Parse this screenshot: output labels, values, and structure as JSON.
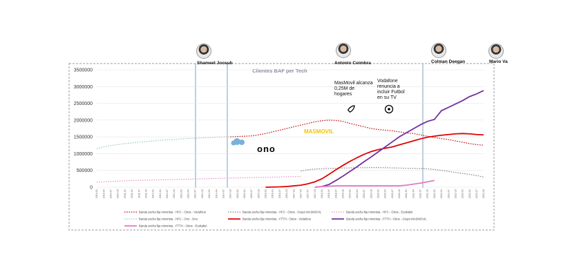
{
  "chart_data": {
    "type": "line",
    "title": "Clientes BAF per Tech",
    "categories": [
      "2010-01",
      "2010-04",
      "2010-07",
      "2010-10",
      "2011-01",
      "2011-04",
      "2011-07",
      "2011-10",
      "2012-01",
      "2012-04",
      "2012-07",
      "2012-10",
      "2013-01",
      "2013-04",
      "2013-07",
      "2013-10",
      "2014-01",
      "2014-04",
      "2014-07",
      "2014-10",
      "2015-01",
      "2015-04",
      "2015-07",
      "2015-10",
      "2016-01",
      "2016-04",
      "2016-07",
      "2016-10",
      "2017-01",
      "2017-04",
      "2017-07",
      "2017-10",
      "2018-01",
      "2018-04",
      "2018-07",
      "2018-10",
      "2019-01",
      "2019-04",
      "2019-07",
      "2019-10",
      "2020-01",
      "2020-04",
      "2020-07",
      "2020-10",
      "2021-01",
      "2021-04",
      "2021-07",
      "2021-10",
      "2022-01",
      "2022-04",
      "2022-07",
      "2022-10",
      "2023-01",
      "2023-04",
      "2023-07",
      "2023-10"
    ],
    "series": [
      {
        "name": "Banda ancha fija minorista - HFC - Otros - Vodafone",
        "color": "#c00000",
        "dashed": true,
        "values": [
          null,
          null,
          null,
          null,
          null,
          null,
          null,
          null,
          null,
          null,
          null,
          null,
          null,
          null,
          null,
          null,
          null,
          null,
          null,
          1500000,
          1510000,
          1520000,
          1530000,
          1560000,
          1600000,
          1650000,
          1700000,
          1750000,
          1800000,
          1850000,
          1900000,
          1950000,
          1980000,
          2000000,
          1990000,
          1960000,
          1900000,
          1850000,
          1800000,
          1750000,
          1720000,
          1700000,
          1680000,
          1650000,
          1620000,
          1600000,
          1560000,
          1520000,
          1480000,
          1450000,
          1420000,
          1380000,
          1340000,
          1300000,
          1270000,
          1250000
        ]
      },
      {
        "name": "Banda ancha fija minorista - HFC - Otros - Grupo MASMOVIL",
        "color": "#7f7f7f",
        "dashed": true,
        "values": [
          null,
          null,
          null,
          null,
          null,
          null,
          null,
          null,
          null,
          null,
          null,
          null,
          null,
          null,
          null,
          null,
          null,
          null,
          null,
          null,
          null,
          null,
          null,
          null,
          null,
          null,
          null,
          null,
          null,
          480000,
          520000,
          540000,
          550000,
          560000,
          565000,
          570000,
          575000,
          580000,
          580000,
          585000,
          585000,
          580000,
          575000,
          570000,
          565000,
          560000,
          555000,
          550000,
          530000,
          500000,
          470000,
          440000,
          410000,
          380000,
          350000,
          300000
        ]
      },
      {
        "name": "Banda ancha fija minorista - HFC - Otros - Euskaltel",
        "color": "#e68fc2",
        "dashed": true,
        "values": [
          150000,
          160000,
          170000,
          180000,
          190000,
          200000,
          205000,
          210000,
          215000,
          220000,
          225000,
          230000,
          235000,
          240000,
          245000,
          250000,
          255000,
          260000,
          265000,
          270000,
          275000,
          280000,
          285000,
          290000,
          295000,
          300000,
          305000,
          310000,
          315000,
          320000,
          null,
          null,
          null,
          null,
          null,
          null,
          null,
          null,
          null,
          null,
          null,
          null,
          null,
          null,
          null,
          null,
          null,
          null,
          null,
          null,
          null,
          null,
          null,
          null,
          null,
          null
        ]
      },
      {
        "name": "Banda ancha fija minorista - HFC - Ono - Ono",
        "color": "#9dc7c4",
        "dashed": true,
        "values": [
          1150000,
          1200000,
          1240000,
          1270000,
          1300000,
          1320000,
          1340000,
          1360000,
          1380000,
          1400000,
          1410000,
          1420000,
          1440000,
          1450000,
          1460000,
          1470000,
          1480000,
          1490000,
          1500000,
          1500000,
          null,
          null,
          null,
          null,
          null,
          null,
          null,
          null,
          null,
          null,
          null,
          null,
          null,
          null,
          null,
          null,
          null,
          null,
          null,
          null,
          null,
          null,
          null,
          null,
          null,
          null,
          null,
          null,
          null,
          null,
          null,
          null,
          null,
          null,
          null,
          null
        ]
      },
      {
        "name": "Banda ancha fija minorista - FTTH - Otros - Vodafone",
        "color": "#e00000",
        "dashed": false,
        "values": [
          null,
          null,
          null,
          null,
          null,
          null,
          null,
          null,
          null,
          null,
          null,
          null,
          null,
          null,
          null,
          null,
          null,
          null,
          null,
          null,
          null,
          null,
          null,
          null,
          0,
          5000,
          10000,
          20000,
          40000,
          60000,
          100000,
          160000,
          250000,
          380000,
          520000,
          650000,
          770000,
          880000,
          980000,
          1060000,
          1120000,
          1160000,
          1200000,
          1260000,
          1320000,
          1380000,
          1440000,
          1490000,
          1520000,
          1550000,
          1570000,
          1590000,
          1600000,
          1590000,
          1570000,
          1560000
        ]
      },
      {
        "name": "Banda ancha fija minorista - FTTH - Otros - Grupo MASMOVIL",
        "color": "#7030a0",
        "dashed": false,
        "values": [
          null,
          null,
          null,
          null,
          null,
          null,
          null,
          null,
          null,
          null,
          null,
          null,
          null,
          null,
          null,
          null,
          null,
          null,
          null,
          null,
          null,
          null,
          null,
          null,
          null,
          null,
          null,
          null,
          null,
          null,
          null,
          0,
          20000,
          80000,
          200000,
          330000,
          470000,
          610000,
          760000,
          900000,
          1050000,
          1200000,
          1350000,
          1500000,
          1620000,
          1740000,
          1860000,
          1960000,
          2020000,
          2280000,
          2380000,
          2480000,
          2580000,
          2700000,
          2780000,
          2880000
        ]
      },
      {
        "name": "Banda ancha fija minorista - FTTH - Otros - Euskaltel",
        "color": "#e377c2",
        "dashed": false,
        "values": [
          null,
          null,
          null,
          null,
          null,
          null,
          null,
          null,
          null,
          null,
          null,
          null,
          null,
          null,
          null,
          null,
          null,
          null,
          null,
          null,
          null,
          null,
          null,
          null,
          null,
          null,
          null,
          null,
          null,
          null,
          null,
          0,
          20000,
          30000,
          40000,
          40000,
          40000,
          40000,
          40000,
          40000,
          40000,
          40000,
          40000,
          40000,
          60000,
          90000,
          120000,
          160000,
          200000,
          null,
          null,
          null,
          null,
          null,
          null,
          null
        ]
      }
    ],
    "ylim": [
      0,
      3500000
    ],
    "yticks": [
      0,
      500000,
      1000000,
      1500000,
      2000000,
      2500000,
      3000000,
      3500000
    ],
    "grid": true,
    "people": [
      "Shameel Joosub",
      "Antonio Coimbra",
      "Colman Deegan",
      "Mario Va"
    ],
    "annotations": [
      "MasMovil alcanza 0,25M de hogares",
      "Vodafone renuncia a incluir Futbol en su TV"
    ],
    "logos": [
      "ono",
      "MASMOVIL"
    ]
  }
}
